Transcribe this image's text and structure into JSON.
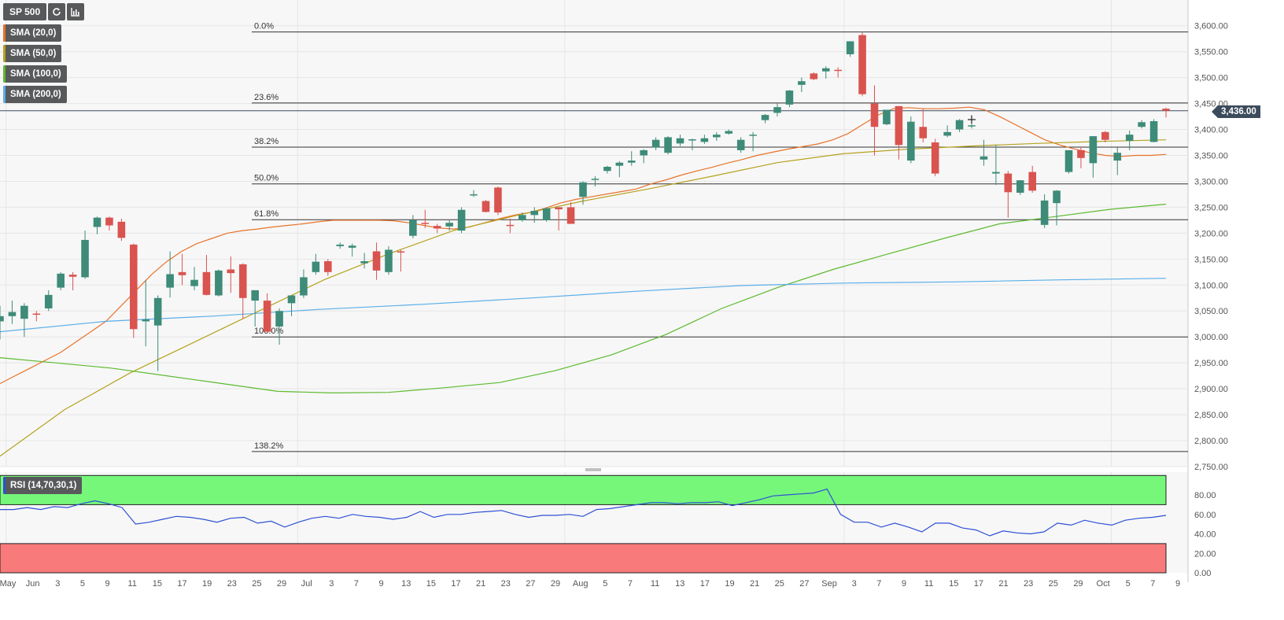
{
  "symbol": "SP 500",
  "toolbar": {
    "refresh_icon": "refresh-icon",
    "indicators_icon": "indicators-icon"
  },
  "indicators": [
    {
      "label": "SMA (20,0)",
      "color": "#e8722a"
    },
    {
      "label": "SMA (50,0)",
      "color": "#b5a21e"
    },
    {
      "label": "SMA (100,0)",
      "color": "#5cba2f"
    },
    {
      "label": "SMA (200,0)",
      "color": "#5aaee8"
    }
  ],
  "rsi": {
    "label": "RSI (14,70,30,1)",
    "upper": 70,
    "lower": 30,
    "color": "#2e4fd6",
    "overbought_color": "#76f77a",
    "oversold_color": "#f87a7a",
    "ticks": [
      "80.00",
      "60.00",
      "40.00",
      "20.00",
      "0.00"
    ]
  },
  "last_price_label": "3,436.00",
  "colors": {
    "up": "#3d8b78",
    "down": "#d9534f",
    "grid": "#e6e6e6",
    "background": "#f7f7f7"
  },
  "chart_data": {
    "type": "candlestick",
    "y_axis": {
      "min": 2750,
      "max": 3600,
      "step": 50,
      "ticks": [
        "3,600.00",
        "3,550.00",
        "3,500.00",
        "3,450.00",
        "3,400.00",
        "3,350.00",
        "3,300.00",
        "3,250.00",
        "3,200.00",
        "3,150.00",
        "3,100.00",
        "3,050.00",
        "3,000.00",
        "2,950.00",
        "2,900.00",
        "2,850.00",
        "2,800.00",
        "2,750.00"
      ]
    },
    "x_axis_labels": [
      "May",
      "Jun",
      "3",
      "5",
      "9",
      "11",
      "15",
      "17",
      "19",
      "23",
      "25",
      "29",
      "Jul",
      "3",
      "7",
      "9",
      "13",
      "15",
      "17",
      "21",
      "23",
      "27",
      "29",
      "Aug",
      "5",
      "7",
      "11",
      "13",
      "17",
      "19",
      "21",
      "25",
      "27",
      "Sep",
      "3",
      "7",
      "9",
      "11",
      "15",
      "17",
      "21",
      "23",
      "25",
      "29",
      "Oct",
      "5",
      "7",
      "9"
    ],
    "fib_levels": [
      {
        "label": "0.0%",
        "value": 3588
      },
      {
        "label": "23.6%",
        "value": 3451
      },
      {
        "label": "38.2%",
        "value": 3366
      },
      {
        "label": "50.0%",
        "value": 3295
      },
      {
        "label": "61.8%",
        "value": 3226
      },
      {
        "label": "100.0%",
        "value": 3000
      },
      {
        "label": "138.2%",
        "value": 2779
      }
    ],
    "last_price": 3436,
    "candles": [
      {
        "o": 3030,
        "h": 3060,
        "l": 2995,
        "c": 3040
      },
      {
        "o": 3040,
        "h": 3070,
        "l": 3025,
        "c": 3048
      },
      {
        "o": 3035,
        "h": 3065,
        "l": 3000,
        "c": 3060
      },
      {
        "o": 3045,
        "h": 3050,
        "l": 3030,
        "c": 3043
      },
      {
        "o": 3055,
        "h": 3090,
        "l": 3050,
        "c": 3081
      },
      {
        "o": 3095,
        "h": 3125,
        "l": 3090,
        "c": 3122
      },
      {
        "o": 3120,
        "h": 3125,
        "l": 3090,
        "c": 3116
      },
      {
        "o": 3115,
        "h": 3205,
        "l": 3112,
        "c": 3187
      },
      {
        "o": 3212,
        "h": 3232,
        "l": 3198,
        "c": 3230
      },
      {
        "o": 3230,
        "h": 3232,
        "l": 3205,
        "c": 3215
      },
      {
        "o": 3222,
        "h": 3228,
        "l": 3185,
        "c": 3191
      },
      {
        "o": 3178,
        "h": 3180,
        "l": 2998,
        "c": 3015
      },
      {
        "o": 3030,
        "h": 3110,
        "l": 2982,
        "c": 3034
      },
      {
        "o": 3022,
        "h": 3080,
        "l": 2934,
        "c": 3075
      },
      {
        "o": 3095,
        "h": 3165,
        "l": 3076,
        "c": 3121
      },
      {
        "o": 3125,
        "h": 3160,
        "l": 3100,
        "c": 3119
      },
      {
        "o": 3098,
        "h": 3135,
        "l": 3090,
        "c": 3110
      },
      {
        "o": 3125,
        "h": 3158,
        "l": 3080,
        "c": 3081
      },
      {
        "o": 3080,
        "h": 3130,
        "l": 3078,
        "c": 3128
      },
      {
        "o": 3130,
        "h": 3155,
        "l": 3085,
        "c": 3123
      },
      {
        "o": 3140,
        "h": 3142,
        "l": 3035,
        "c": 3075
      },
      {
        "o": 3070,
        "h": 3090,
        "l": 3020,
        "c": 3090
      },
      {
        "o": 3070,
        "h": 3084,
        "l": 3010,
        "c": 3010
      },
      {
        "o": 3020,
        "h": 3055,
        "l": 2985,
        "c": 3050
      },
      {
        "o": 3065,
        "h": 3075,
        "l": 3040,
        "c": 3080
      },
      {
        "o": 3080,
        "h": 3130,
        "l": 3075,
        "c": 3115
      },
      {
        "o": 3125,
        "h": 3160,
        "l": 3120,
        "c": 3145
      },
      {
        "o": 3146,
        "h": 3150,
        "l": 3118,
        "c": 3125
      },
      {
        "o": 3175,
        "h": 3182,
        "l": 3170,
        "c": 3178
      },
      {
        "o": 3172,
        "h": 3180,
        "l": 3155,
        "c": 3176
      },
      {
        "o": 3142,
        "h": 3162,
        "l": 3132,
        "c": 3146
      },
      {
        "o": 3165,
        "h": 3182,
        "l": 3110,
        "c": 3128
      },
      {
        "o": 3125,
        "h": 3175,
        "l": 3120,
        "c": 3168
      },
      {
        "o": 3165,
        "h": 3168,
        "l": 3126,
        "c": 3163
      },
      {
        "o": 3195,
        "h": 3235,
        "l": 3190,
        "c": 3225
      },
      {
        "o": 3220,
        "h": 3245,
        "l": 3210,
        "c": 3218
      },
      {
        "o": 3214,
        "h": 3218,
        "l": 3200,
        "c": 3209
      },
      {
        "o": 3213,
        "h": 3225,
        "l": 3205,
        "c": 3220
      },
      {
        "o": 3205,
        "h": 3250,
        "l": 3200,
        "c": 3245
      },
      {
        "o": 3275,
        "h": 3283,
        "l": 3270,
        "c": 3275
      },
      {
        "o": 3262,
        "h": 3264,
        "l": 3240,
        "c": 3241
      },
      {
        "o": 3288,
        "h": 3290,
        "l": 3235,
        "c": 3240
      },
      {
        "o": 3216,
        "h": 3228,
        "l": 3200,
        "c": 3215
      },
      {
        "o": 3225,
        "h": 3240,
        "l": 3222,
        "c": 3235
      },
      {
        "o": 3235,
        "h": 3250,
        "l": 3220,
        "c": 3243
      },
      {
        "o": 3225,
        "h": 3250,
        "l": 3222,
        "c": 3248
      },
      {
        "o": 3250,
        "h": 3250,
        "l": 3205,
        "c": 3246
      },
      {
        "o": 3250,
        "h": 3260,
        "l": 3218,
        "c": 3218
      },
      {
        "o": 3270,
        "h": 3300,
        "l": 3255,
        "c": 3298
      },
      {
        "o": 3303,
        "h": 3310,
        "l": 3290,
        "c": 3305
      },
      {
        "o": 3320,
        "h": 3330,
        "l": 3315,
        "c": 3328
      },
      {
        "o": 3330,
        "h": 3339,
        "l": 3308,
        "c": 3336
      },
      {
        "o": 3336,
        "h": 3358,
        "l": 3330,
        "c": 3340
      },
      {
        "o": 3350,
        "h": 3362,
        "l": 3335,
        "c": 3360
      },
      {
        "o": 3365,
        "h": 3385,
        "l": 3360,
        "c": 3380
      },
      {
        "o": 3355,
        "h": 3387,
        "l": 3352,
        "c": 3385
      },
      {
        "o": 3373,
        "h": 3390,
        "l": 3368,
        "c": 3383
      },
      {
        "o": 3380,
        "h": 3382,
        "l": 3360,
        "c": 3381
      },
      {
        "o": 3376,
        "h": 3390,
        "l": 3372,
        "c": 3383
      },
      {
        "o": 3385,
        "h": 3395,
        "l": 3378,
        "c": 3390
      },
      {
        "o": 3392,
        "h": 3400,
        "l": 3390,
        "c": 3397
      },
      {
        "o": 3360,
        "h": 3385,
        "l": 3355,
        "c": 3380
      },
      {
        "o": 3390,
        "h": 3395,
        "l": 3358,
        "c": 3390
      },
      {
        "o": 3418,
        "h": 3430,
        "l": 3412,
        "c": 3428
      },
      {
        "o": 3432,
        "h": 3450,
        "l": 3425,
        "c": 3443
      },
      {
        "o": 3448,
        "h": 3476,
        "l": 3443,
        "c": 3475
      },
      {
        "o": 3486,
        "h": 3500,
        "l": 3472,
        "c": 3493
      },
      {
        "o": 3508,
        "h": 3510,
        "l": 3495,
        "c": 3497
      },
      {
        "o": 3512,
        "h": 3522,
        "l": 3498,
        "c": 3518
      },
      {
        "o": 3515,
        "h": 3520,
        "l": 3500,
        "c": 3513
      },
      {
        "o": 3545,
        "h": 3570,
        "l": 3540,
        "c": 3570
      },
      {
        "o": 3582,
        "h": 3588,
        "l": 3464,
        "c": 3468
      },
      {
        "o": 3450,
        "h": 3485,
        "l": 3350,
        "c": 3405
      },
      {
        "o": 3410,
        "h": 3438,
        "l": 3408,
        "c": 3438
      },
      {
        "o": 3445,
        "h": 3445,
        "l": 3342,
        "c": 3370
      },
      {
        "o": 3340,
        "h": 3425,
        "l": 3335,
        "c": 3415
      },
      {
        "o": 3405,
        "h": 3440,
        "l": 3375,
        "c": 3383
      },
      {
        "o": 3375,
        "h": 3382,
        "l": 3310,
        "c": 3315
      },
      {
        "o": 3388,
        "h": 3408,
        "l": 3385,
        "c": 3395
      },
      {
        "o": 3400,
        "h": 3420,
        "l": 3395,
        "c": 3418
      },
      {
        "o": 3407,
        "h": 3428,
        "l": 3402,
        "c": 3408
      },
      {
        "o": 3342,
        "h": 3380,
        "l": 3330,
        "c": 3348
      },
      {
        "o": 3315,
        "h": 3370,
        "l": 3293,
        "c": 3318
      },
      {
        "o": 3315,
        "h": 3320,
        "l": 3230,
        "c": 3279
      },
      {
        "o": 3278,
        "h": 3302,
        "l": 3274,
        "c": 3302
      },
      {
        "o": 3318,
        "h": 3330,
        "l": 3278,
        "c": 3282
      },
      {
        "o": 3216,
        "h": 3275,
        "l": 3210,
        "c": 3263
      },
      {
        "o": 3258,
        "h": 3283,
        "l": 3215,
        "c": 3282
      },
      {
        "o": 3318,
        "h": 3360,
        "l": 3315,
        "c": 3360
      },
      {
        "o": 3360,
        "h": 3367,
        "l": 3325,
        "c": 3345
      },
      {
        "o": 3335,
        "h": 3387,
        "l": 3307,
        "c": 3387
      },
      {
        "o": 3395,
        "h": 3397,
        "l": 3375,
        "c": 3380
      },
      {
        "o": 3340,
        "h": 3365,
        "l": 3312,
        "c": 3355
      },
      {
        "o": 3378,
        "h": 3398,
        "l": 3360,
        "c": 3390
      },
      {
        "o": 3405,
        "h": 3418,
        "l": 3402,
        "c": 3414
      },
      {
        "o": 3376,
        "h": 3420,
        "l": 3375,
        "c": 3416
      },
      {
        "o": 3440,
        "h": 3442,
        "l": 3423,
        "c": 3436
      }
    ],
    "sma20": [
      2910,
      2925,
      2940,
      2955,
      2970,
      2990,
      3010,
      3030,
      3060,
      3090,
      3120,
      3145,
      3165,
      3180,
      3190,
      3200,
      3205,
      3208,
      3212,
      3215,
      3218,
      3222,
      3225,
      3225,
      3225,
      3225,
      3224,
      3220,
      3215,
      3210,
      3208,
      3212,
      3220,
      3228,
      3235,
      3240,
      3248,
      3258,
      3265,
      3270,
      3275,
      3280,
      3285,
      3295,
      3303,
      3312,
      3320,
      3327,
      3335,
      3342,
      3350,
      3356,
      3362,
      3367,
      3372,
      3380,
      3392,
      3410,
      3428,
      3440,
      3442,
      3440,
      3440,
      3441,
      3443,
      3438,
      3425,
      3410,
      3395,
      3380,
      3370,
      3362,
      3355,
      3350,
      3348,
      3350,
      3350,
      3352
    ],
    "sma50": [
      2770,
      2860,
      2930,
      2990,
      3050,
      3110,
      3160,
      3205,
      3235,
      3262,
      3285,
      3310,
      3336,
      3353,
      3362,
      3368,
      3373,
      3377,
      3380
    ],
    "sma100": [
      2960,
      2950,
      2940,
      2925,
      2910,
      2895,
      2892,
      2893,
      2902,
      2912,
      2935,
      2965,
      3005,
      3055,
      3095,
      3130,
      3160,
      3190,
      3218,
      3232,
      3246,
      3256
    ],
    "sma200": [
      3010,
      3030,
      3040,
      3053,
      3063,
      3075,
      3088,
      3099,
      3104,
      3106,
      3110,
      3113
    ],
    "rsi_values": [
      65,
      65,
      67,
      65,
      68,
      67,
      71,
      74,
      71,
      67,
      50,
      52,
      55,
      58,
      57,
      55,
      52,
      56,
      57,
      51,
      53,
      47,
      52,
      56,
      58,
      56,
      60,
      58,
      57,
      55,
      57,
      63,
      57,
      60,
      60,
      62,
      63,
      64,
      60,
      57,
      59,
      59,
      60,
      58,
      65,
      66,
      68,
      70,
      72,
      72,
      71,
      72,
      72,
      73,
      69,
      72,
      75,
      79,
      80,
      81,
      82,
      86,
      60,
      52,
      52,
      47,
      51,
      47,
      42,
      51,
      51,
      46,
      44,
      38,
      43,
      41,
      40,
      42,
      51,
      49,
      54,
      51,
      49,
      54,
      56,
      57,
      59
    ]
  }
}
